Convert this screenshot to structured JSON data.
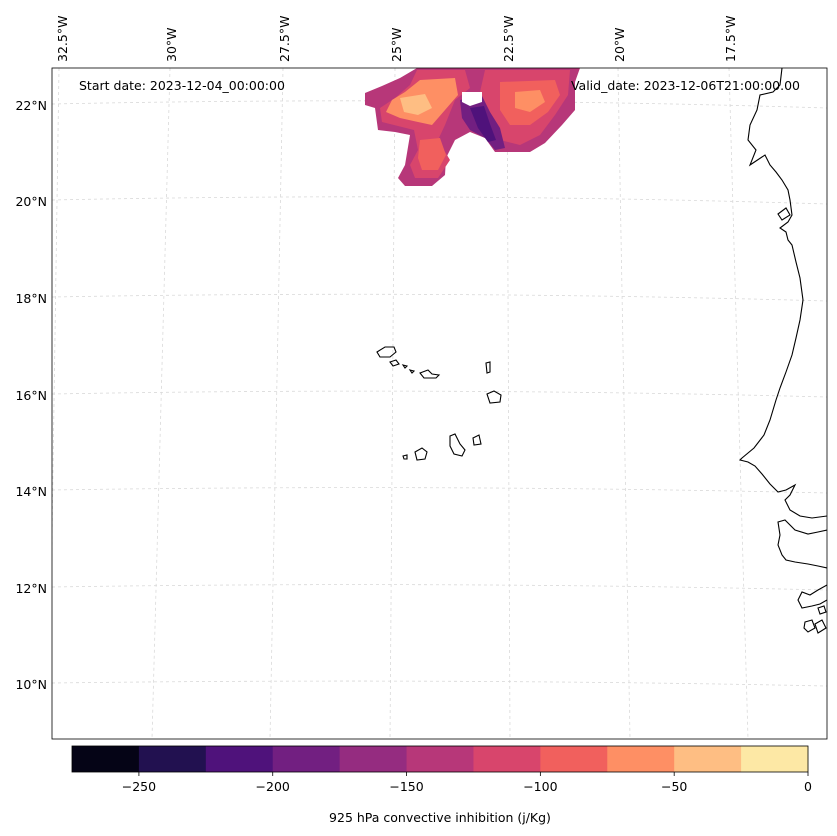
{
  "map": {
    "start_date": "Start date: 2023-12-04_00:00:00",
    "valid_date": "Valid_date: 2023-12-06T21:00:00.00",
    "lon_labels": [
      "32.5°W",
      "30°W",
      "27.5°W",
      "25°W",
      "22.5°W",
      "20°W",
      "17.5°W"
    ],
    "lat_labels": [
      "22°N",
      "20°N",
      "18°N",
      "16°N",
      "14°N",
      "12°N",
      "10°N"
    ],
    "region": "Cabo Verde and West African coast"
  },
  "colorbar": {
    "label": "925 hPa convective inhibition (j/Kg)",
    "tick_labels": [
      "−250",
      "−200",
      "−150",
      "−100",
      "−50",
      "0"
    ],
    "range": [
      -275,
      0
    ],
    "step": 25,
    "colors": [
      "#050416",
      "#221150",
      "#4f127b",
      "#721f81",
      "#952c80",
      "#b73779",
      "#d8456c",
      "#f1605d",
      "#fe8f64",
      "#febe83",
      "#fde8a5"
    ]
  }
}
